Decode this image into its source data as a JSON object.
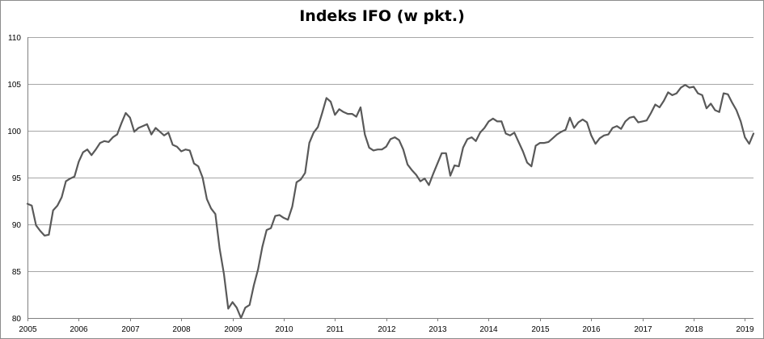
{
  "chart_data": {
    "type": "line",
    "title": "Indeks IFO (w pkt.)",
    "xlabel": "",
    "ylabel": "",
    "ylim": [
      80,
      110
    ],
    "yticks": [
      80,
      85,
      90,
      95,
      100,
      105,
      110
    ],
    "xlim": [
      "2005-01",
      "2019-03"
    ],
    "xticks": [
      "2005",
      "2006",
      "2007",
      "2008",
      "2009",
      "2010",
      "2011",
      "2012",
      "2013",
      "2014",
      "2015",
      "2016",
      "2017",
      "2018",
      "2019"
    ],
    "grid": "horizontal",
    "line_color": "#595959",
    "series": [
      {
        "x_start": "2005-01",
        "frequency": "monthly",
        "values": [
          92.2,
          92.0,
          89.9,
          89.3,
          88.8,
          88.9,
          91.5,
          92.0,
          92.9,
          94.6,
          94.9,
          95.1,
          96.7,
          97.7,
          98.0,
          97.4,
          98.0,
          98.7,
          98.9,
          98.8,
          99.3,
          99.6,
          100.8,
          101.9,
          101.4,
          99.9,
          100.3,
          100.5,
          100.7,
          99.6,
          100.3,
          99.9,
          99.5,
          99.8,
          98.5,
          98.3,
          97.8,
          98.0,
          97.9,
          96.5,
          96.2,
          95.0,
          92.7,
          91.7,
          91.1,
          87.4,
          84.7,
          81.0,
          81.7,
          81.1,
          80.0,
          81.1,
          81.4,
          83.5,
          85.2,
          87.6,
          89.4,
          89.6,
          90.9,
          91.0,
          90.7,
          90.5,
          91.9,
          94.5,
          94.8,
          95.5,
          98.7,
          99.8,
          100.4,
          101.9,
          103.5,
          103.1,
          101.7,
          102.3,
          102.0,
          101.8,
          101.8,
          101.5,
          102.5,
          99.6,
          98.2,
          97.9,
          98.0,
          98.0,
          98.3,
          99.1,
          99.3,
          99.0,
          98.0,
          96.4,
          95.8,
          95.3,
          94.6,
          94.9,
          94.2,
          95.4,
          96.5,
          97.6,
          97.6,
          95.2,
          96.3,
          96.2,
          98.2,
          99.1,
          99.3,
          98.9,
          99.8,
          100.3,
          101.0,
          101.3,
          101.0,
          101.0,
          99.7,
          99.5,
          99.8,
          98.8,
          97.8,
          96.6,
          96.2,
          98.4,
          98.7,
          98.7,
          98.8,
          99.2,
          99.6,
          99.9,
          100.1,
          101.4,
          100.3,
          100.9,
          101.2,
          100.9,
          99.5,
          98.6,
          99.2,
          99.5,
          99.6,
          100.3,
          100.5,
          100.2,
          101.0,
          101.4,
          101.5,
          100.9,
          101.0,
          101.1,
          101.9,
          102.8,
          102.5,
          103.2,
          104.1,
          103.8,
          104.0,
          104.6,
          104.9,
          104.6,
          104.7,
          104.0,
          103.8,
          102.4,
          102.9,
          102.2,
          102.0,
          104.0,
          103.9,
          103.0,
          102.2,
          101.0,
          99.3,
          98.6,
          99.7
        ]
      }
    ]
  }
}
